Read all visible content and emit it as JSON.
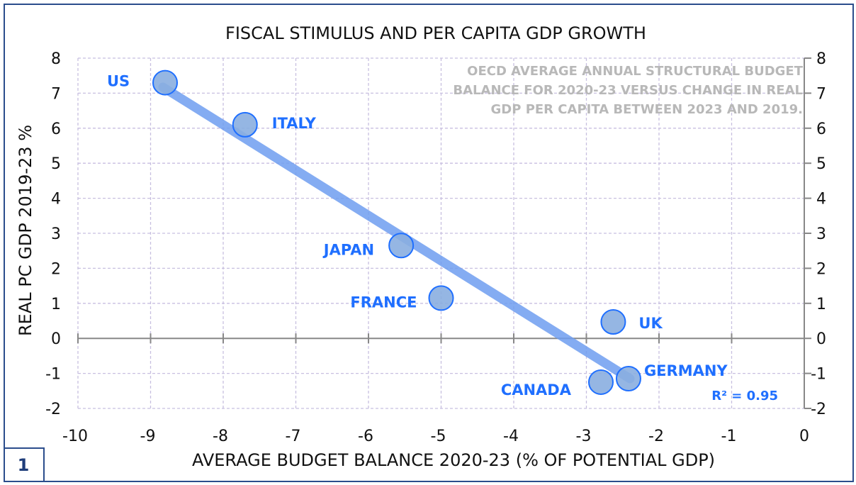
{
  "chart_data": {
    "type": "scatter",
    "title": "FISCAL STIMULUS AND PER CAPITA GDP GROWTH",
    "xlabel": "AVERAGE BUDGET BALANCE 2020-23 (% OF POTENTIAL GDP)",
    "ylabel": "REAL PC GDP 2019-23 %",
    "xlim": [
      -10,
      0
    ],
    "ylim": [
      -2,
      8
    ],
    "xticks": [
      "-10",
      "-9",
      "-8",
      "-7",
      "-6",
      "-5",
      "-4",
      "-3",
      "-2",
      "-1",
      "0"
    ],
    "yticks": [
      "8",
      "7",
      "6",
      "5",
      "4",
      "3",
      "2",
      "1",
      "0",
      "-1",
      "-2"
    ],
    "grid": true,
    "points": [
      {
        "label": "US",
        "x": -8.8,
        "y": 7.3
      },
      {
        "label": "ITALY",
        "x": -7.7,
        "y": 6.1
      },
      {
        "label": "JAPAN",
        "x": -5.55,
        "y": 2.65
      },
      {
        "label": "FRANCE",
        "x": -5.0,
        "y": 1.15
      },
      {
        "label": "UK",
        "x": -2.63,
        "y": 0.47
      },
      {
        "label": "GERMANY",
        "x": -2.42,
        "y": -1.15
      },
      {
        "label": "CANADA",
        "x": -2.8,
        "y": -1.25
      }
    ],
    "trendline": {
      "x": [
        -8.83,
        -2.4
      ],
      "y": [
        7.17,
        -1.15
      ],
      "r2_label": "R² = 0.95"
    },
    "annotation": [
      "OECD AVERAGE ANNUAL STRUCTURAL BUDGET",
      "BALANCE FOR 2020-23 VERSUS CHANGE IN REAL",
      "GDP PER CAPITA BETWEEN 2023 AND 2019."
    ],
    "colors": {
      "point": "#8aaee0",
      "point_stroke": "#1f6fff",
      "label": "#1f6fff",
      "trend": "#6f9ef0",
      "grid": "#c8bfe0",
      "annotation": "#b8b8b8"
    }
  },
  "chart_number": "1"
}
